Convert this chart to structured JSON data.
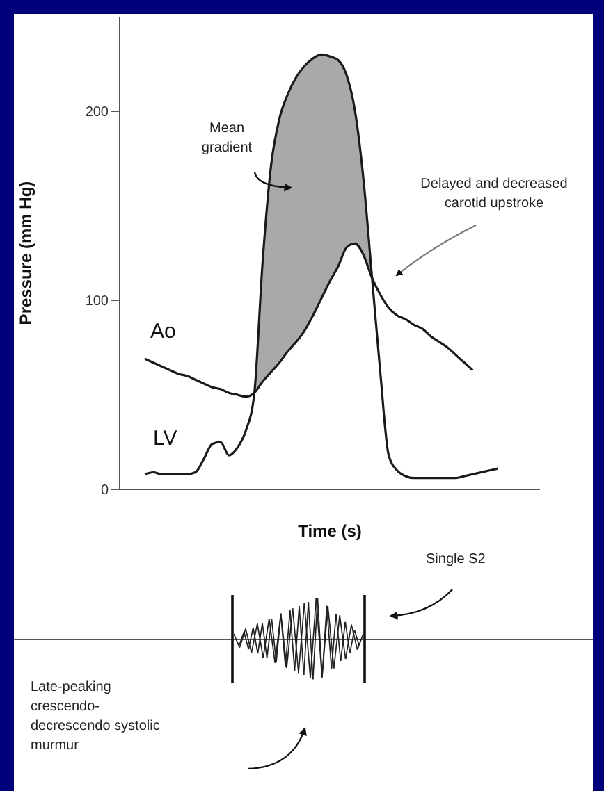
{
  "chart_data": {
    "type": "line",
    "xlabel": "Time (s)",
    "ylabel": "Pressure (mm Hg)",
    "categories": [
      null,
      null,
      null,
      null,
      null,
      null,
      null,
      null,
      null,
      null,
      null,
      null,
      null,
      null,
      null,
      null,
      null,
      null,
      null,
      null,
      null,
      null,
      null,
      null,
      null,
      null,
      null,
      null,
      null,
      null,
      null,
      null,
      null,
      null,
      null,
      null,
      null,
      null,
      null,
      null,
      null,
      null,
      null,
      null,
      null,
      null,
      null,
      null,
      null,
      null,
      null
    ],
    "series": [
      {
        "name": "Ao",
        "color": "#1a1a1a",
        "values": [
          null,
          null,
          null,
          69,
          67,
          65,
          63,
          61,
          60,
          58,
          56,
          54,
          53,
          51,
          50,
          49,
          51,
          57,
          62,
          67,
          73,
          78,
          84,
          92,
          101,
          110,
          118,
          128,
          130,
          124,
          112,
          103,
          96,
          92,
          90,
          87,
          85,
          81,
          78,
          75,
          71,
          67,
          63,
          null,
          null,
          null,
          null,
          null,
          null,
          null,
          null
        ]
      },
      {
        "name": "LV",
        "color": "#1a1a1a",
        "values": [
          null,
          null,
          null,
          8,
          9,
          8,
          8,
          8,
          8,
          9,
          16,
          24,
          25,
          18,
          22,
          31,
          50,
          120,
          171,
          196,
          209,
          218,
          224,
          228,
          230,
          229,
          227,
          219,
          200,
          164,
          113,
          62,
          18,
          10,
          7,
          6,
          6,
          6,
          6,
          6,
          6,
          7,
          8,
          9,
          10,
          11,
          null,
          null,
          null,
          null,
          null
        ],
        "lower": [
          null,
          null,
          null,
          null,
          null,
          null,
          null,
          null,
          null,
          null,
          null,
          null,
          null,
          null,
          null,
          null,
          50,
          57,
          62,
          67,
          73,
          78,
          84,
          92,
          101,
          110,
          118,
          128,
          130,
          124,
          112,
          null,
          null,
          null,
          null,
          null,
          null,
          null,
          null,
          null,
          null,
          null,
          null,
          null,
          null,
          null,
          null,
          null,
          null,
          null,
          null
        ],
        "upper": [
          null,
          null,
          null,
          null,
          null,
          null,
          null,
          null,
          null,
          null,
          null,
          null,
          null,
          null,
          null,
          null,
          50,
          120,
          171,
          196,
          209,
          218,
          224,
          228,
          230,
          229,
          227,
          219,
          200,
          164,
          113,
          null,
          null,
          null,
          null,
          null,
          null,
          null,
          null,
          null,
          null,
          null,
          null,
          null,
          null,
          null,
          null,
          null,
          null,
          null,
          null
        ]
      }
    ],
    "ylim": [
      0,
      250
    ],
    "yticks": [
      0,
      100,
      200
    ],
    "tick_labels": "y",
    "line_style": "solid",
    "marker": "none",
    "annotations": [
      "Mean gradient",
      "Delayed and decreased carotid upstroke",
      "Single S2",
      "Late-peaking crescendo-decrescendo systolic murmur"
    ]
  }
}
